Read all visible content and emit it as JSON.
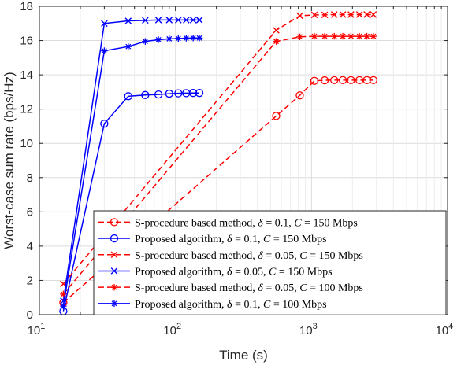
{
  "chart_data": {
    "type": "line",
    "title": "",
    "xlabel": "Time (s)",
    "ylabel": "Worst-case sum rate (bps/Hz)",
    "xscale": "log",
    "xlim": [
      10,
      10000
    ],
    "ylim": [
      0,
      18
    ],
    "xticks": [
      {
        "value": 10,
        "base": "10",
        "exp": "1"
      },
      {
        "value": 100,
        "base": "10",
        "exp": "2"
      },
      {
        "value": 1000,
        "base": "10",
        "exp": "3"
      },
      {
        "value": 10000,
        "base": "10",
        "exp": "4"
      }
    ],
    "yticks": [
      0,
      2,
      4,
      6,
      8,
      10,
      12,
      14,
      16,
      18
    ],
    "grid": true,
    "legend_position": "lower-right",
    "series": [
      {
        "name": "S-procedure based method, δ = 0.1, C = 150 Mbps",
        "color": "#ff0000",
        "dash": true,
        "marker": "circle",
        "x": [
          15,
          550,
          820,
          1050,
          1250,
          1470,
          1700,
          1950,
          2250,
          2550,
          2850
        ],
        "y": [
          0.7,
          11.6,
          12.8,
          13.65,
          13.68,
          13.69,
          13.69,
          13.69,
          13.69,
          13.69,
          13.69
        ]
      },
      {
        "name": "Proposed algorithm, δ = 0.1, C = 150 Mbps",
        "color": "#0000ff",
        "dash": false,
        "marker": "circle",
        "x": [
          15,
          30,
          45,
          60,
          75,
          90,
          105,
          120,
          135,
          150
        ],
        "y": [
          0.2,
          11.15,
          12.75,
          12.82,
          12.85,
          12.9,
          12.92,
          12.93,
          12.94,
          12.94
        ]
      },
      {
        "name": "S-procedure based method, δ = 0.05, C = 150 Mbps",
        "color": "#ff0000",
        "dash": true,
        "marker": "x",
        "x": [
          15,
          550,
          820,
          1050,
          1250,
          1470,
          1700,
          1950,
          2250,
          2550,
          2850
        ],
        "y": [
          1.8,
          16.6,
          17.45,
          17.5,
          17.5,
          17.52,
          17.52,
          17.52,
          17.52,
          17.52,
          17.52
        ]
      },
      {
        "name": "Proposed algorithm, δ = 0.05, C = 150 Mbps",
        "color": "#0000ff",
        "dash": false,
        "marker": "x",
        "x": [
          15,
          30,
          45,
          60,
          75,
          90,
          105,
          120,
          135,
          150
        ],
        "y": [
          0.8,
          17.0,
          17.15,
          17.18,
          17.2,
          17.2,
          17.2,
          17.2,
          17.2,
          17.2
        ]
      },
      {
        "name": "S-procedure based method, δ = 0.05, C = 100 Mbps",
        "color": "#ff0000",
        "dash": true,
        "marker": "star",
        "x": [
          15,
          550,
          820,
          1050,
          1250,
          1470,
          1700,
          1950,
          2250,
          2550,
          2850
        ],
        "y": [
          1.2,
          15.95,
          16.22,
          16.25,
          16.25,
          16.25,
          16.25,
          16.25,
          16.25,
          16.25,
          16.25
        ]
      },
      {
        "name": "Proposed algorithm, δ = 0.1, C = 100 Mbps",
        "color": "#0000ff",
        "dash": false,
        "marker": "star",
        "x": [
          15,
          30,
          45,
          60,
          75,
          90,
          105,
          120,
          135,
          150
        ],
        "y": [
          0.5,
          15.4,
          15.65,
          15.95,
          16.05,
          16.1,
          16.12,
          16.14,
          16.15,
          16.15
        ]
      }
    ],
    "legend_entries": [
      {
        "method": "S-procedure based method",
        "delta": "0.1",
        "capacity": "150 Mbps"
      },
      {
        "method": "Proposed algorithm",
        "delta": "0.1",
        "capacity": "150 Mbps"
      },
      {
        "method": "S-procedure based method",
        "delta": "0.05",
        "capacity": "150 Mbps"
      },
      {
        "method": "Proposed algorithm",
        "delta": "0.05",
        "capacity": "150 Mbps"
      },
      {
        "method": "S-procedure based method",
        "delta": "0.05",
        "capacity": "100 Mbps"
      },
      {
        "method": "Proposed algorithm",
        "delta": "0.1",
        "capacity": "100 Mbps"
      }
    ]
  }
}
